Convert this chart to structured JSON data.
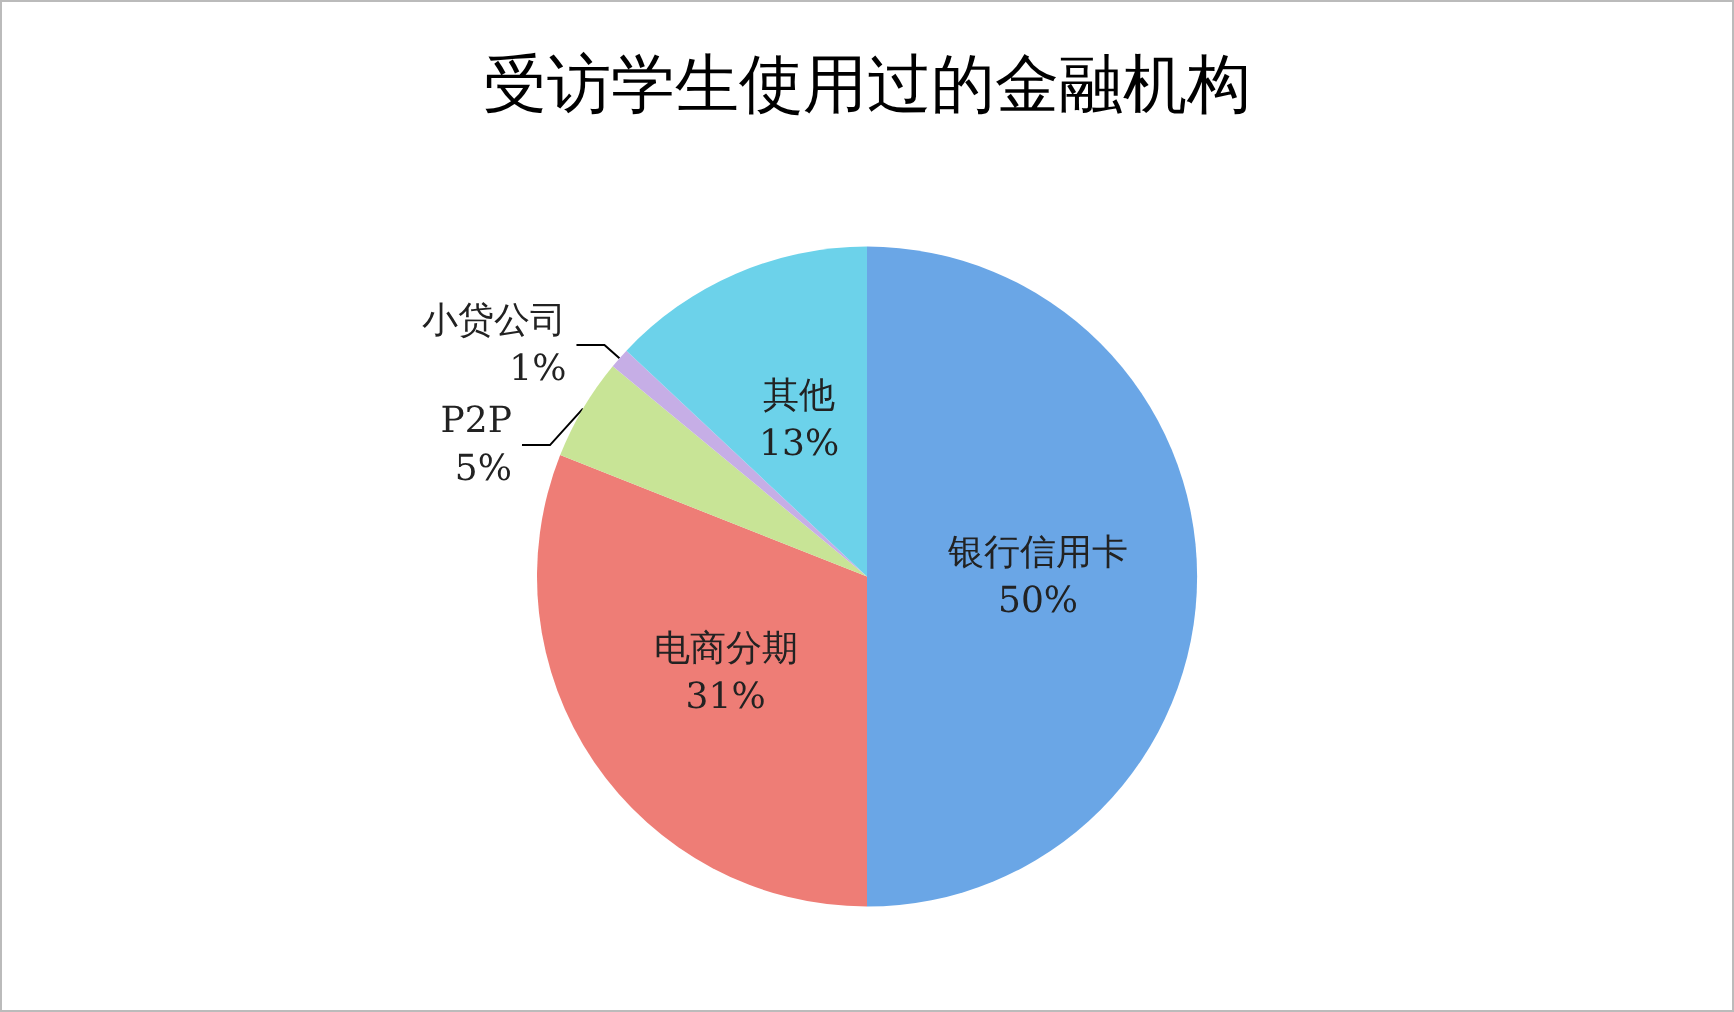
{
  "chart_data": {
    "type": "pie",
    "title": "受访学生使用过的金融机构",
    "categories": [
      "银行信用卡",
      "电商分期",
      "P2P",
      "小贷公司",
      "其他"
    ],
    "values": [
      50,
      31,
      5,
      1,
      13
    ],
    "colors": [
      "#6aa6e6",
      "#ee7d76",
      "#c8e496",
      "#c6aee6",
      "#6cd2ea"
    ],
    "value_labels": [
      "50%",
      "31%",
      "5%",
      "1%",
      "13%"
    ],
    "legend": false
  }
}
